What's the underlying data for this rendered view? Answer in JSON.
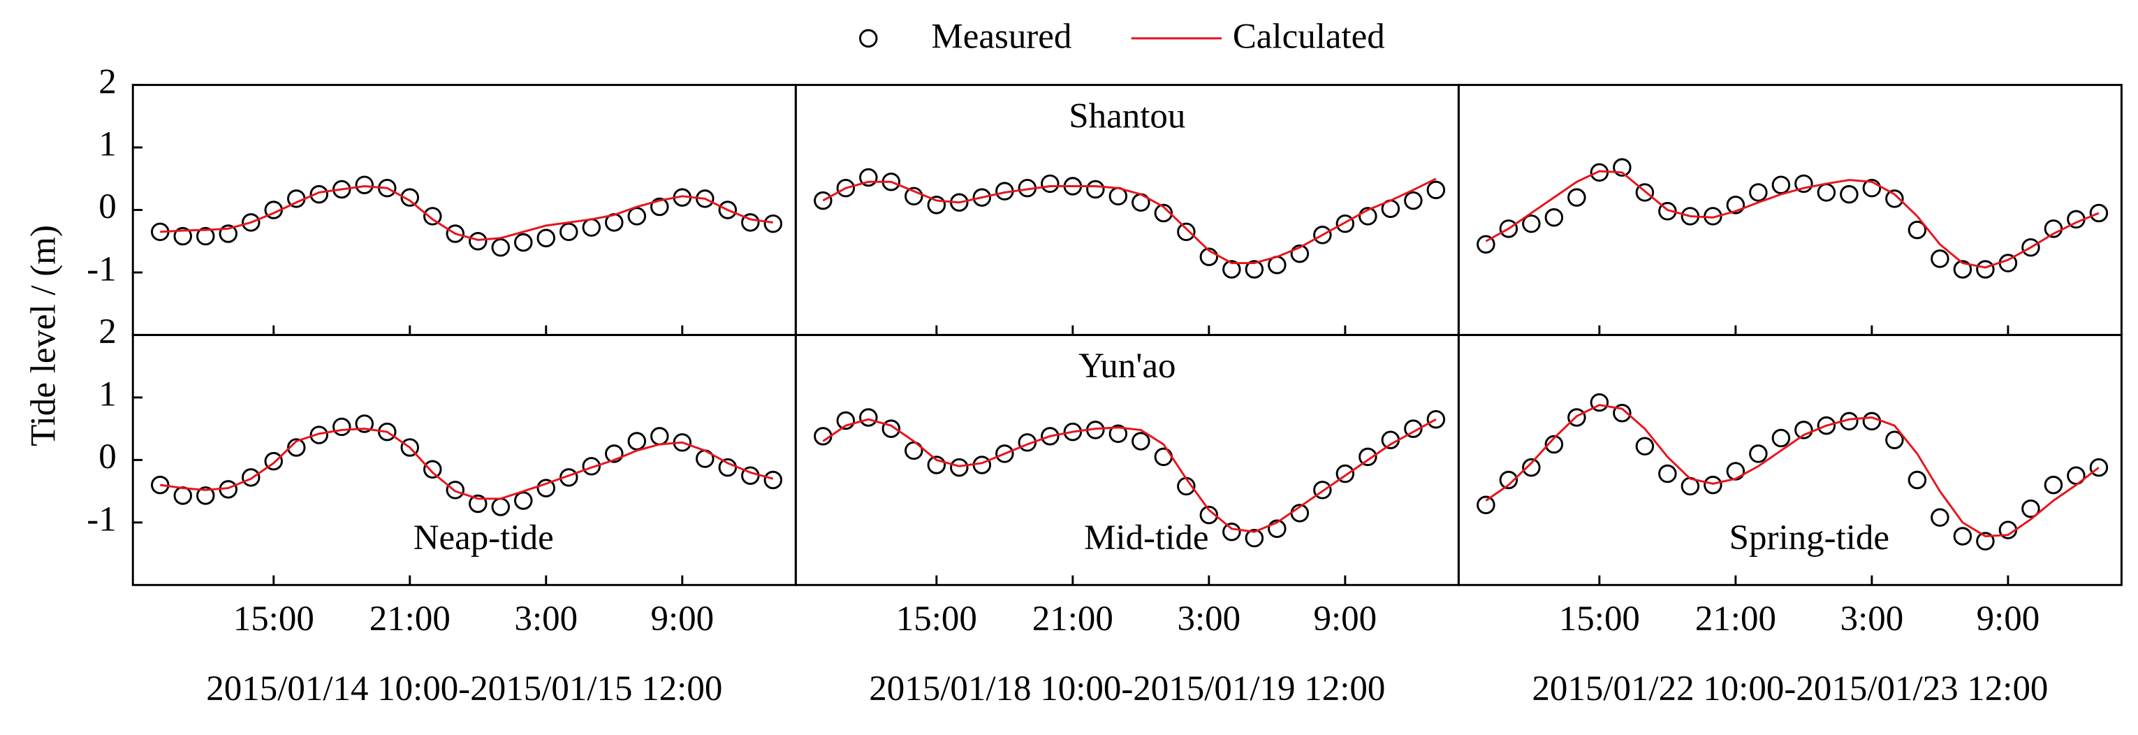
{
  "chart_data": [
    {
      "type": "line",
      "ylabel": "Tide level / (m)",
      "x": [
        10,
        11,
        12,
        13,
        14,
        15,
        16,
        17,
        18,
        19,
        20,
        21,
        22,
        23,
        24,
        25,
        26,
        27,
        28,
        29,
        30,
        31,
        32,
        33,
        34,
        35,
        36,
        37
      ],
      "xlim": [
        8.8,
        38
      ],
      "ylim": [
        -2,
        2
      ],
      "yticks": [
        -1,
        0,
        1,
        2
      ],
      "xticks": [
        15,
        21,
        27,
        33
      ],
      "series": [
        {
          "name": "Measured",
          "color": "#000000",
          "marker": "circle",
          "values": [
            -0.35,
            -0.42,
            -0.42,
            -0.38,
            -0.2,
            0.0,
            0.18,
            0.25,
            0.33,
            0.4,
            0.35,
            0.2,
            -0.1,
            -0.38,
            -0.5,
            -0.6,
            -0.52,
            -0.45,
            -0.35,
            -0.28,
            -0.2,
            -0.1,
            0.05,
            0.2,
            0.18,
            0.0,
            -0.2,
            -0.22
          ]
        },
        {
          "name": "Calculated",
          "color": "#e8131b",
          "values": [
            -0.35,
            -0.33,
            -0.32,
            -0.3,
            -0.2,
            -0.05,
            0.12,
            0.28,
            0.33,
            0.38,
            0.35,
            0.15,
            -0.15,
            -0.38,
            -0.48,
            -0.45,
            -0.35,
            -0.25,
            -0.2,
            -0.15,
            -0.08,
            0.05,
            0.15,
            0.22,
            0.18,
            0.0,
            -0.15,
            -0.2
          ]
        }
      ]
    },
    {
      "type": "line",
      "title": "Shantou",
      "x": [
        10,
        11,
        12,
        13,
        14,
        15,
        16,
        17,
        18,
        19,
        20,
        21,
        22,
        23,
        24,
        25,
        26,
        27,
        28,
        29,
        30,
        31,
        32,
        33,
        34,
        35,
        36,
        37
      ],
      "xlim": [
        8.8,
        38
      ],
      "ylim": [
        -2,
        2
      ],
      "xticks": [
        15,
        21,
        27,
        33
      ],
      "series": [
        {
          "values": [
            0.15,
            0.35,
            0.52,
            0.45,
            0.22,
            0.08,
            0.12,
            0.2,
            0.3,
            0.35,
            0.42,
            0.38,
            0.33,
            0.22,
            0.12,
            -0.05,
            -0.35,
            -0.75,
            -0.95,
            -0.95,
            -0.88,
            -0.7,
            -0.4,
            -0.22,
            -0.1,
            0.02,
            0.15,
            0.32
          ]
        },
        {
          "values": [
            0.15,
            0.35,
            0.45,
            0.45,
            0.3,
            0.15,
            0.12,
            0.2,
            0.28,
            0.33,
            0.38,
            0.38,
            0.38,
            0.35,
            0.25,
            0.05,
            -0.3,
            -0.65,
            -0.85,
            -0.85,
            -0.75,
            -0.6,
            -0.4,
            -0.2,
            0.0,
            0.15,
            0.32,
            0.5
          ]
        }
      ]
    },
    {
      "type": "line",
      "x": [
        10,
        11,
        12,
        13,
        14,
        15,
        16,
        17,
        18,
        19,
        20,
        21,
        22,
        23,
        24,
        25,
        26,
        27,
        28,
        29,
        30,
        31,
        32,
        33,
        34,
        35,
        36,
        37
      ],
      "xlim": [
        8.8,
        38
      ],
      "ylim": [
        -2,
        2
      ],
      "xticks": [
        15,
        21,
        27,
        33
      ],
      "series": [
        {
          "values": [
            -0.55,
            -0.3,
            -0.22,
            -0.12,
            0.2,
            0.6,
            0.68,
            0.28,
            -0.02,
            -0.1,
            -0.1,
            0.08,
            0.28,
            0.4,
            0.42,
            0.28,
            0.25,
            0.35,
            0.18,
            -0.32,
            -0.78,
            -0.95,
            -0.95,
            -0.85,
            -0.6,
            -0.3,
            -0.15,
            -0.05
          ]
        },
        {
          "values": [
            -0.5,
            -0.3,
            -0.05,
            0.2,
            0.45,
            0.62,
            0.6,
            0.3,
            0.0,
            -0.1,
            -0.12,
            -0.02,
            0.12,
            0.25,
            0.35,
            0.42,
            0.48,
            0.45,
            0.25,
            -0.1,
            -0.55,
            -0.85,
            -0.92,
            -0.8,
            -0.6,
            -0.38,
            -0.2,
            -0.05
          ]
        }
      ]
    },
    {
      "type": "line",
      "annotation": "Neap-tide",
      "xlabel": "2015/01/14 10:00-2015/01/15 12:00",
      "x": [
        10,
        11,
        12,
        13,
        14,
        15,
        16,
        17,
        18,
        19,
        20,
        21,
        22,
        23,
        24,
        25,
        26,
        27,
        28,
        29,
        30,
        31,
        32,
        33,
        34,
        35,
        36,
        37
      ],
      "xlim": [
        8.8,
        38
      ],
      "ylim": [
        -2,
        2
      ],
      "yticks": [
        -1,
        0,
        1,
        2
      ],
      "xticks": [
        {
          "value": 15,
          "label": "15:00"
        },
        {
          "value": 21,
          "label": "21:00"
        },
        {
          "value": 27,
          "label": "3:00"
        },
        {
          "value": 33,
          "label": "9:00"
        }
      ],
      "series": [
        {
          "values": [
            -0.4,
            -0.57,
            -0.57,
            -0.47,
            -0.28,
            -0.02,
            0.2,
            0.4,
            0.53,
            0.58,
            0.45,
            0.2,
            -0.15,
            -0.48,
            -0.7,
            -0.75,
            -0.65,
            -0.45,
            -0.28,
            -0.1,
            0.1,
            0.3,
            0.38,
            0.28,
            0.02,
            -0.12,
            -0.25,
            -0.32
          ]
        },
        {
          "values": [
            -0.4,
            -0.45,
            -0.48,
            -0.45,
            -0.3,
            -0.05,
            0.3,
            0.42,
            0.48,
            0.5,
            0.45,
            0.2,
            -0.2,
            -0.5,
            -0.62,
            -0.62,
            -0.5,
            -0.38,
            -0.25,
            -0.12,
            0.0,
            0.15,
            0.25,
            0.28,
            0.15,
            -0.05,
            -0.2,
            -0.3
          ]
        }
      ]
    },
    {
      "type": "line",
      "title": "Yun'ao",
      "annotation": "Mid-tide",
      "xlabel": "2015/01/18 10:00-2015/01/19 12:00",
      "x": [
        10,
        11,
        12,
        13,
        14,
        15,
        16,
        17,
        18,
        19,
        20,
        21,
        22,
        23,
        24,
        25,
        26,
        27,
        28,
        29,
        30,
        31,
        32,
        33,
        34,
        35,
        36,
        37
      ],
      "xlim": [
        8.8,
        38
      ],
      "ylim": [
        -2,
        2
      ],
      "xticks": [
        {
          "value": 15,
          "label": "15:00"
        },
        {
          "value": 21,
          "label": "21:00"
        },
        {
          "value": 27,
          "label": "3:00"
        },
        {
          "value": 33,
          "label": "9:00"
        }
      ],
      "series": [
        {
          "values": [
            0.38,
            0.63,
            0.68,
            0.5,
            0.15,
            -0.08,
            -0.12,
            -0.08,
            0.1,
            0.28,
            0.38,
            0.45,
            0.48,
            0.42,
            0.3,
            0.05,
            -0.42,
            -0.88,
            -1.15,
            -1.25,
            -1.1,
            -0.85,
            -0.48,
            -0.22,
            0.05,
            0.32,
            0.5,
            0.65
          ]
        },
        {
          "values": [
            0.3,
            0.55,
            0.65,
            0.55,
            0.3,
            0.0,
            -0.1,
            -0.05,
            0.1,
            0.25,
            0.38,
            0.45,
            0.5,
            0.52,
            0.48,
            0.25,
            -0.3,
            -0.8,
            -1.1,
            -1.15,
            -1.0,
            -0.75,
            -0.5,
            -0.25,
            0.0,
            0.25,
            0.45,
            0.65
          ]
        }
      ]
    },
    {
      "type": "line",
      "annotation": "Spring-tide",
      "xlabel": "2015/01/22 10:00-2015/01/23 12:00",
      "x": [
        10,
        11,
        12,
        13,
        14,
        15,
        16,
        17,
        18,
        19,
        20,
        21,
        22,
        23,
        24,
        25,
        26,
        27,
        28,
        29,
        30,
        31,
        32,
        33,
        34,
        35,
        36,
        37
      ],
      "xlim": [
        8.8,
        38
      ],
      "ylim": [
        -2,
        2
      ],
      "xticks": [
        {
          "value": 15,
          "label": "15:00"
        },
        {
          "value": 21,
          "label": "21:00"
        },
        {
          "value": 27,
          "label": "3:00"
        },
        {
          "value": 33,
          "label": "9:00"
        }
      ],
      "series": [
        {
          "values": [
            -0.72,
            -0.32,
            -0.12,
            0.25,
            0.68,
            0.92,
            0.75,
            0.22,
            -0.22,
            -0.42,
            -0.4,
            -0.18,
            0.1,
            0.35,
            0.48,
            0.55,
            0.62,
            0.62,
            0.32,
            -0.32,
            -0.92,
            -1.22,
            -1.3,
            -1.12,
            -0.78,
            -0.4,
            -0.25,
            -0.12
          ]
        },
        {
          "values": [
            -0.65,
            -0.4,
            -0.05,
            0.35,
            0.7,
            0.88,
            0.82,
            0.5,
            0.05,
            -0.3,
            -0.38,
            -0.3,
            -0.1,
            0.15,
            0.4,
            0.55,
            0.65,
            0.68,
            0.55,
            0.1,
            -0.5,
            -1.0,
            -1.22,
            -1.2,
            -0.95,
            -0.65,
            -0.4,
            -0.12
          ]
        }
      ]
    }
  ]
}
